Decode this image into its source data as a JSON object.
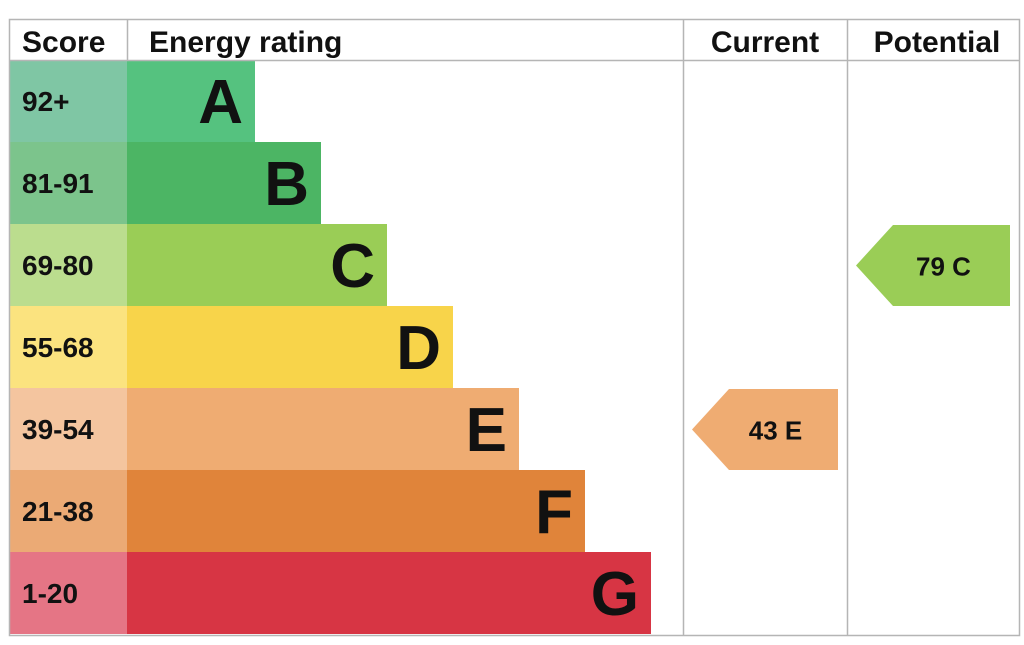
{
  "headers": {
    "score": "Score",
    "energy_rating": "Energy rating",
    "current": "Current",
    "potential": "Potential"
  },
  "chart_data": {
    "type": "bar",
    "title": "",
    "categories": [
      "A",
      "B",
      "C",
      "D",
      "E",
      "F",
      "G"
    ],
    "bands": [
      {
        "letter": "A",
        "range": "92+",
        "color": "#55c27f",
        "score_bg": "#7fc6a4"
      },
      {
        "letter": "B",
        "range": "81-91",
        "color": "#4cb564",
        "score_bg": "#7cc48c"
      },
      {
        "letter": "C",
        "range": "69-80",
        "color": "#9acd56",
        "score_bg": "#bbdd8e"
      },
      {
        "letter": "D",
        "range": "55-68",
        "color": "#f8d44a",
        "score_bg": "#fbe37f"
      },
      {
        "letter": "E",
        "range": "39-54",
        "color": "#efac72",
        "score_bg": "#f4c59f"
      },
      {
        "letter": "F",
        "range": "21-38",
        "color": "#e0843a",
        "score_bg": "#ebaa75"
      },
      {
        "letter": "G",
        "range": "1-20",
        "color": "#d73544",
        "score_bg": "#e57585"
      }
    ],
    "current": {
      "score": 43,
      "band": "E",
      "label": "43  E",
      "color": "#efac72"
    },
    "potential": {
      "score": 79,
      "band": "C",
      "label": "79  C",
      "color": "#9acd56"
    }
  }
}
